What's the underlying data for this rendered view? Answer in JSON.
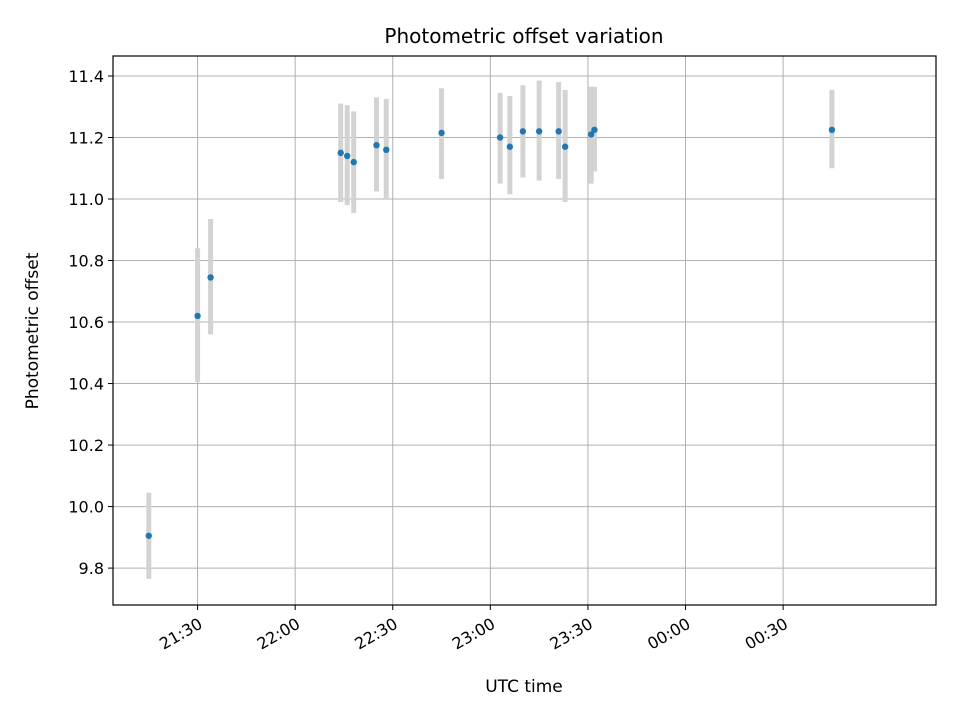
{
  "chart_data": {
    "type": "scatter",
    "title": "Photometric offset variation",
    "xlabel": "UTC time",
    "ylabel": "Photometric offset",
    "x_tick_labels": [
      "21:30",
      "22:00",
      "22:30",
      "23:00",
      "23:30",
      "00:00",
      "00:30"
    ],
    "y_tick_labels": [
      "9.8",
      "10.0",
      "10.2",
      "10.4",
      "10.6",
      "10.8",
      "11.0",
      "11.2",
      "11.4"
    ],
    "xlim": [
      "21:04",
      "01:17"
    ],
    "ylim": [
      9.68,
      11.465
    ],
    "grid": true,
    "colors": {
      "point": "#1f77b4",
      "errorbar": "#d3d3d3",
      "grid": "#b0b0b0"
    },
    "points": [
      {
        "x": "21:15",
        "y": 9.905,
        "err_low": 9.765,
        "err_high": 10.045
      },
      {
        "x": "21:30",
        "y": 10.62,
        "err_low": 10.405,
        "err_high": 10.84
      },
      {
        "x": "21:34",
        "y": 10.745,
        "err_low": 10.56,
        "err_high": 10.935
      },
      {
        "x": "22:14",
        "y": 11.15,
        "err_low": 10.99,
        "err_high": 11.31
      },
      {
        "x": "22:16",
        "y": 11.14,
        "err_low": 10.98,
        "err_high": 11.305
      },
      {
        "x": "22:18",
        "y": 11.12,
        "err_low": 10.955,
        "err_high": 11.285
      },
      {
        "x": "22:25",
        "y": 11.175,
        "err_low": 11.025,
        "err_high": 11.33
      },
      {
        "x": "22:28",
        "y": 11.16,
        "err_low": 11.0,
        "err_high": 11.325
      },
      {
        "x": "22:45",
        "y": 11.215,
        "err_low": 11.065,
        "err_high": 11.36
      },
      {
        "x": "23:03",
        "y": 11.2,
        "err_low": 11.05,
        "err_high": 11.345
      },
      {
        "x": "23:06",
        "y": 11.17,
        "err_low": 11.015,
        "err_high": 11.335
      },
      {
        "x": "23:10",
        "y": 11.22,
        "err_low": 11.07,
        "err_high": 11.37
      },
      {
        "x": "23:15",
        "y": 11.22,
        "err_low": 11.06,
        "err_high": 11.385
      },
      {
        "x": "23:21",
        "y": 11.22,
        "err_low": 11.065,
        "err_high": 11.38
      },
      {
        "x": "23:23",
        "y": 11.17,
        "err_low": 10.99,
        "err_high": 11.355
      },
      {
        "x": "23:31",
        "y": 11.21,
        "err_low": 11.05,
        "err_high": 11.365
      },
      {
        "x": "23:32",
        "y": 11.225,
        "err_low": 11.09,
        "err_high": 11.365
      },
      {
        "x": "00:45",
        "y": 11.225,
        "err_low": 11.1,
        "err_high": 11.355
      }
    ]
  }
}
